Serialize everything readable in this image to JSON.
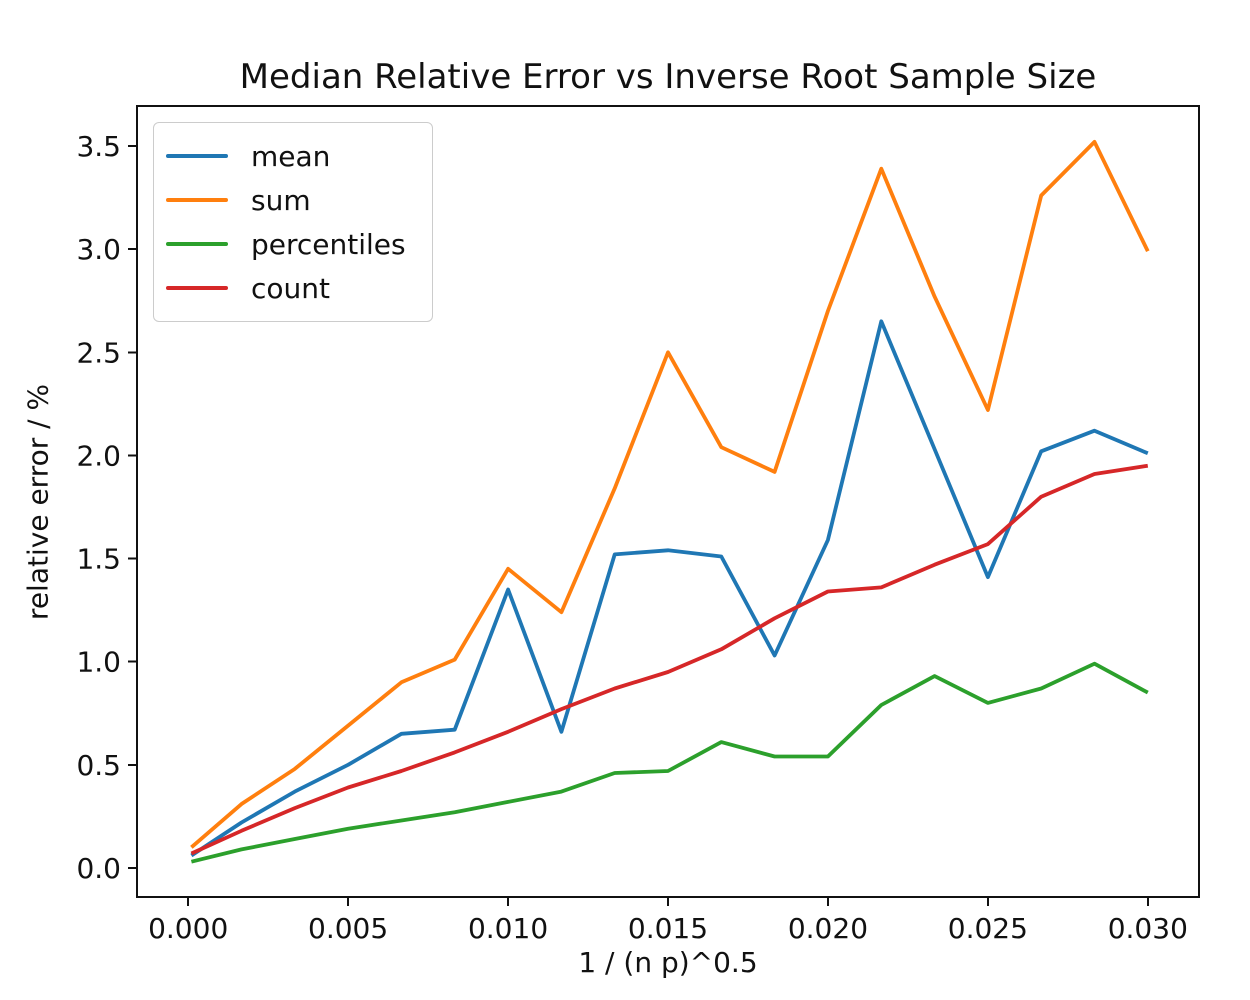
{
  "chart_data": {
    "type": "line",
    "title": "Median Relative Error vs Inverse Root Sample Size",
    "xlabel": "1 / (n p)^0.5",
    "ylabel": "relative error / %",
    "grid": false,
    "legend_position": "upper left",
    "xlim": [
      -0.0016,
      0.0316
    ],
    "ylim": [
      -0.141,
      3.694
    ],
    "x_ticks": [
      0.0,
      0.005,
      0.01,
      0.015,
      0.02,
      0.025,
      0.03
    ],
    "x_tick_labels": [
      "0.000",
      "0.005",
      "0.010",
      "0.015",
      "0.020",
      "0.025",
      "0.030"
    ],
    "y_ticks": [
      0.0,
      0.5,
      1.0,
      1.5,
      2.0,
      2.5,
      3.0,
      3.5
    ],
    "y_tick_labels": [
      "0.0",
      "0.5",
      "1.0",
      "1.5",
      "2.0",
      "2.5",
      "3.0",
      "3.5"
    ],
    "x": [
      0.0001,
      0.001667,
      0.003333,
      0.005,
      0.006667,
      0.008333,
      0.01,
      0.011667,
      0.013333,
      0.015,
      0.016667,
      0.018333,
      0.02,
      0.021667,
      0.023333,
      0.025,
      0.026667,
      0.028333,
      0.03
    ],
    "series": [
      {
        "name": "mean",
        "color": "#1f77b4",
        "values": [
          0.06,
          0.22,
          0.37,
          0.5,
          0.65,
          0.67,
          1.35,
          0.66,
          1.52,
          1.54,
          1.51,
          1.03,
          1.59,
          2.65,
          2.03,
          1.41,
          2.02,
          2.12,
          2.01
        ]
      },
      {
        "name": "sum",
        "color": "#ff7f0e",
        "values": [
          0.1,
          0.31,
          0.48,
          0.69,
          0.9,
          1.01,
          1.45,
          1.24,
          1.84,
          2.5,
          2.04,
          1.92,
          2.7,
          3.39,
          2.77,
          2.22,
          3.26,
          3.52,
          2.99
        ]
      },
      {
        "name": "percentiles",
        "color": "#2ca02c",
        "values": [
          0.03,
          0.09,
          0.14,
          0.19,
          0.23,
          0.27,
          0.32,
          0.37,
          0.46,
          0.47,
          0.61,
          0.54,
          0.54,
          0.79,
          0.93,
          0.8,
          0.87,
          0.99,
          0.85
        ]
      },
      {
        "name": "count",
        "color": "#d62728",
        "values": [
          0.07,
          0.18,
          0.29,
          0.39,
          0.47,
          0.56,
          0.66,
          0.77,
          0.87,
          0.95,
          1.06,
          1.21,
          1.34,
          1.36,
          1.47,
          1.57,
          1.8,
          1.91,
          1.95
        ]
      }
    ]
  }
}
